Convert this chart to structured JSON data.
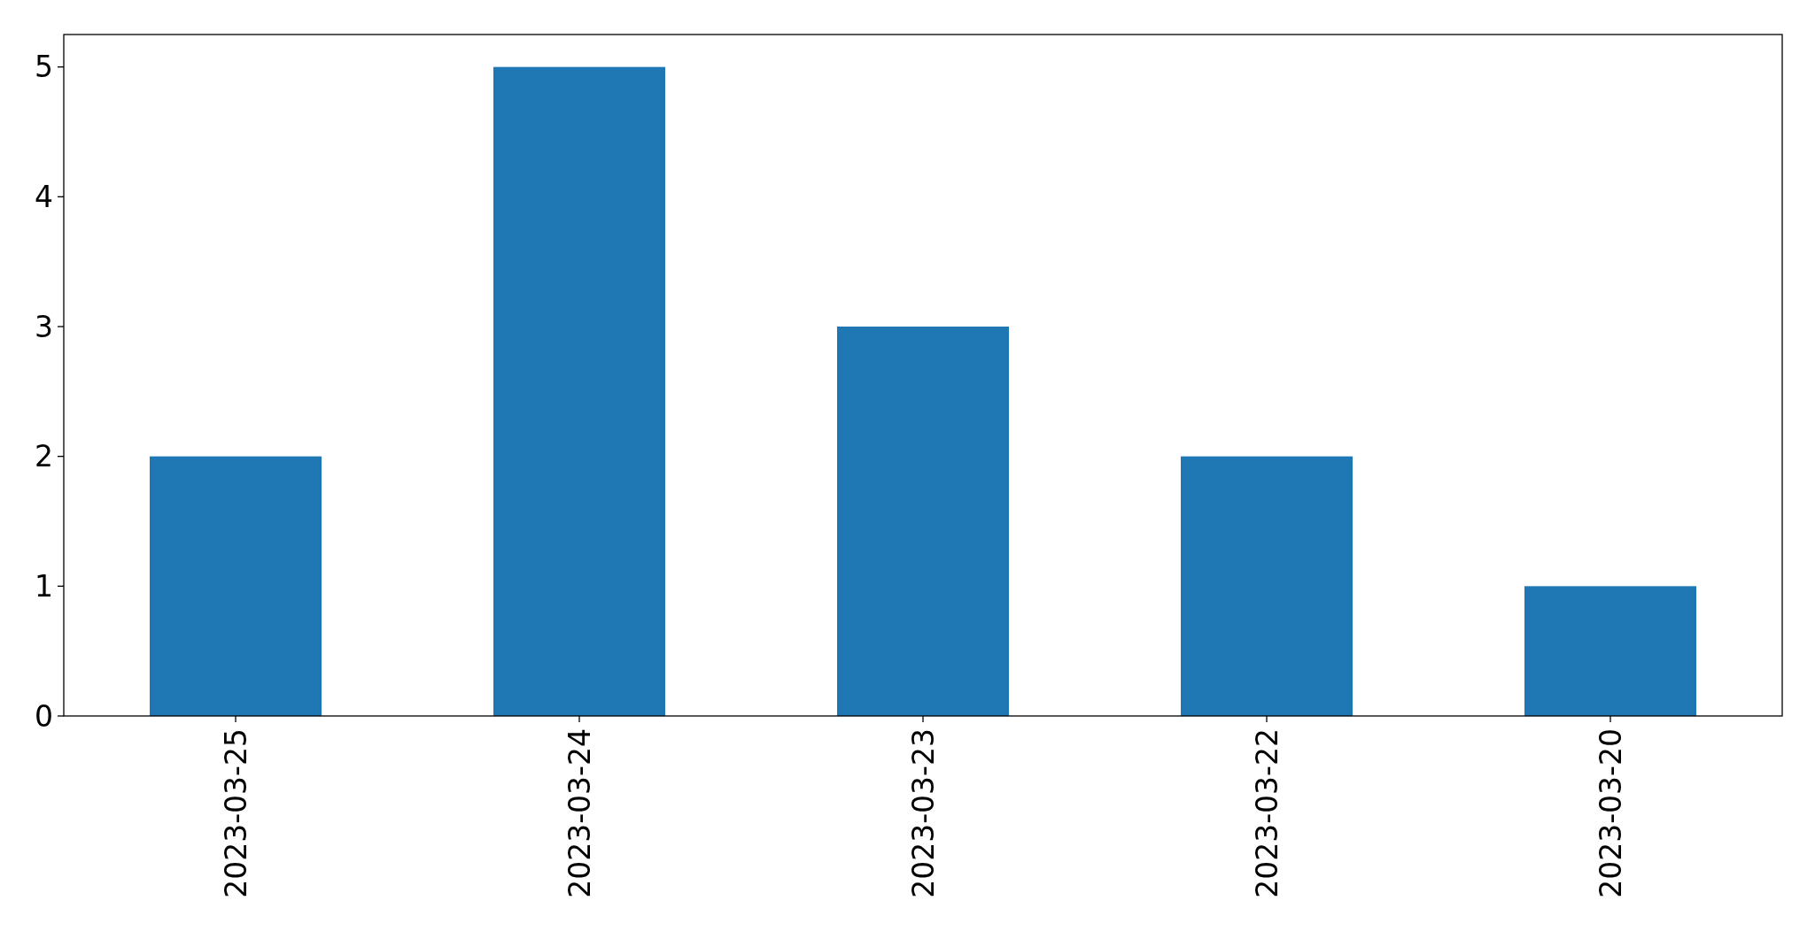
{
  "chart_data": {
    "type": "bar",
    "categories": [
      "2023-03-25",
      "2023-03-24",
      "2023-03-23",
      "2023-03-22",
      "2023-03-20"
    ],
    "values": [
      2,
      5,
      3,
      2,
      1
    ],
    "color": "#1f77b4",
    "ylim": [
      0,
      5.25
    ],
    "yticks": [
      0,
      1,
      2,
      3,
      4,
      5
    ]
  }
}
